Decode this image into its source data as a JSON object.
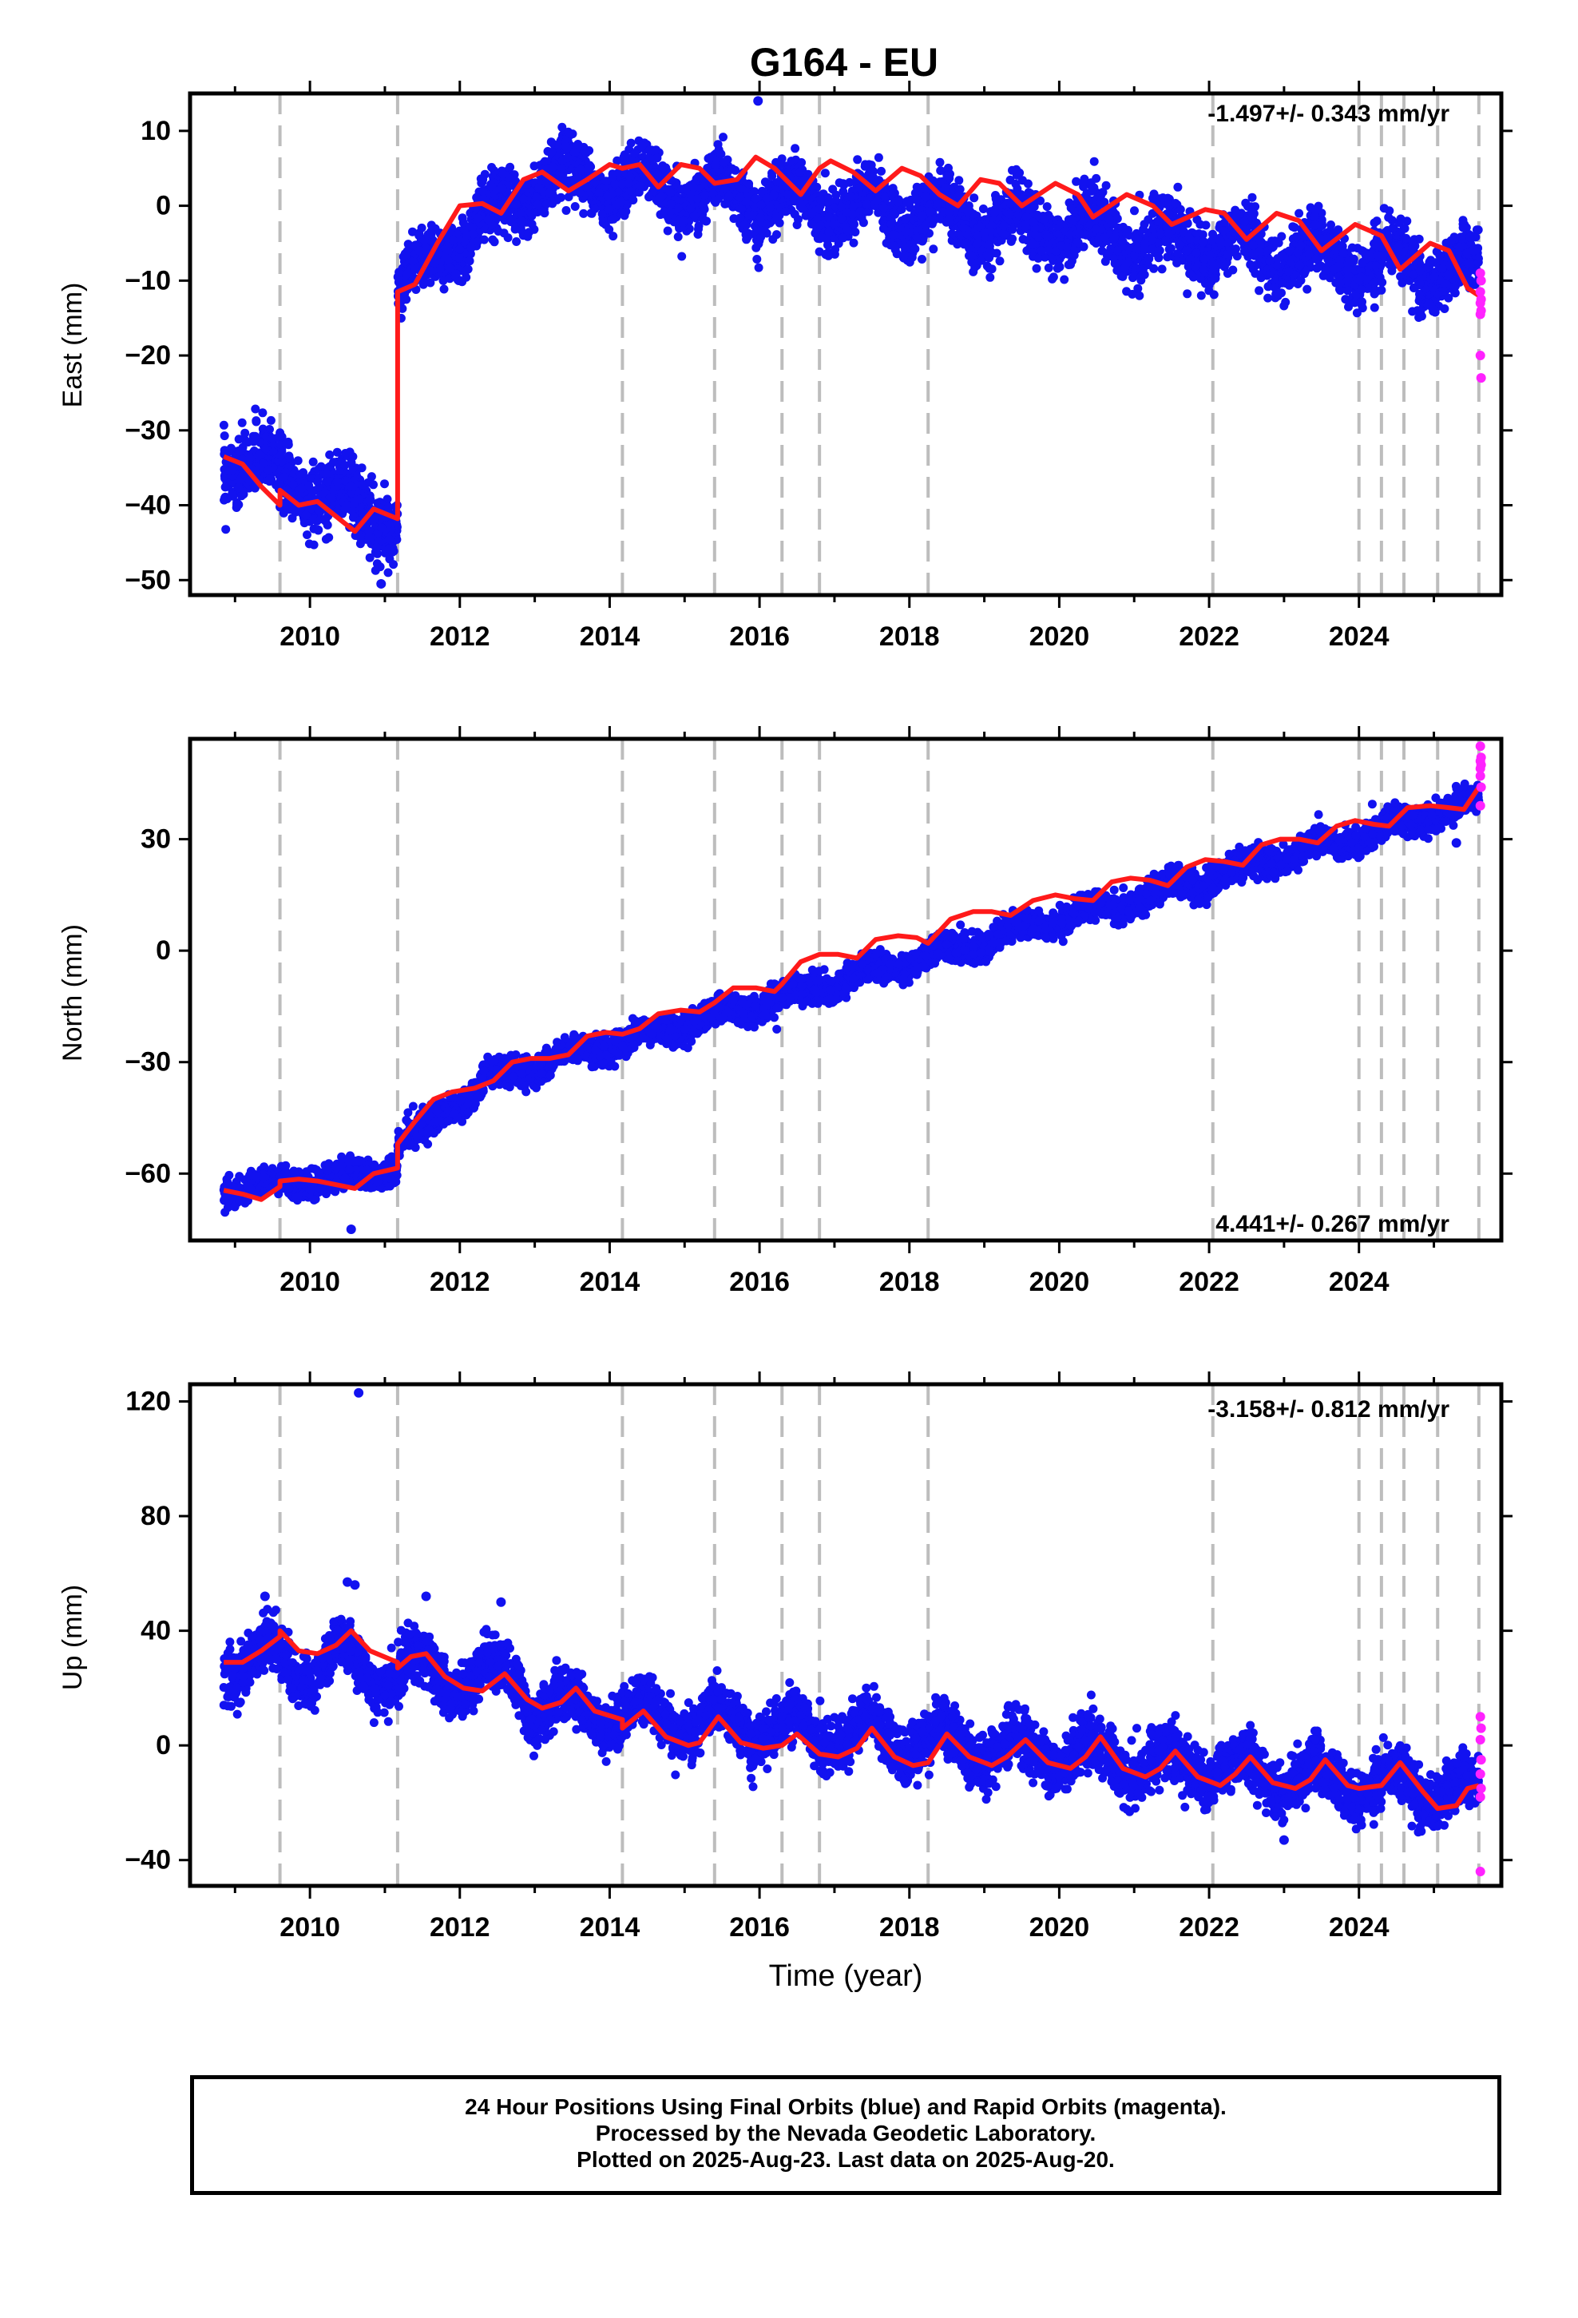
{
  "chart_data": {
    "type": "scatter",
    "title": "G164 - EU",
    "xlabel": "Time (year)",
    "xlim": [
      2008.4,
      2025.9
    ],
    "x_ticks": [
      2010,
      2012,
      2014,
      2016,
      2018,
      2020,
      2022,
      2024
    ],
    "x_tick_labels": [
      "2010",
      "2012",
      "2014",
      "2016",
      "2018",
      "2020",
      "2022",
      "2024"
    ],
    "steps": [
      2009.6,
      2011.17,
      2014.17,
      2015.4,
      2016.3,
      2016.8,
      2018.25,
      2022.05,
      2024.0,
      2024.3,
      2024.6,
      2025.05,
      2025.6
    ],
    "colors": {
      "final_orbits": "#1212f0",
      "rapid_orbits": "#ff22ff",
      "model_fit": "#ff1a1a",
      "step_lines": "#bdbdbd"
    },
    "legend": [
      {
        "name": "Final Orbits",
        "color": "blue"
      },
      {
        "name": "Rapid Orbits",
        "color": "magenta"
      }
    ],
    "panels": [
      {
        "id": "east",
        "ylabel": "East (mm)",
        "ylim": [
          -52,
          15
        ],
        "y_ticks": [
          -50,
          -40,
          -30,
          -20,
          -10,
          0,
          10
        ],
        "y_tick_labels": [
          "−50",
          "−40",
          "−30",
          "−20",
          "−10",
          "0",
          "10"
        ],
        "rate_text": "-1.497+/- 0.343 mm/yr",
        "rate_position": "top-right",
        "fit_points": [
          [
            2008.85,
            -33.5
          ],
          [
            2009.1,
            -34.5
          ],
          [
            2009.35,
            -37.5
          ],
          [
            2009.6,
            -40
          ],
          [
            2009.6,
            -38
          ],
          [
            2009.85,
            -40
          ],
          [
            2010.1,
            -39.5
          ],
          [
            2010.35,
            -41.5
          ],
          [
            2010.6,
            -43.5
          ],
          [
            2010.85,
            -40.5
          ],
          [
            2011.17,
            -41.8
          ],
          [
            2011.17,
            -11.5
          ],
          [
            2011.4,
            -10.5
          ],
          [
            2011.7,
            -5
          ],
          [
            2012.0,
            0
          ],
          [
            2012.3,
            0.3
          ],
          [
            2012.55,
            -1
          ],
          [
            2012.85,
            3.5
          ],
          [
            2013.1,
            4.5
          ],
          [
            2013.45,
            2
          ],
          [
            2013.7,
            3.5
          ],
          [
            2014.0,
            5.5
          ],
          [
            2014.17,
            5
          ],
          [
            2014.4,
            5.5
          ],
          [
            2014.65,
            2.5
          ],
          [
            2014.95,
            5.5
          ],
          [
            2015.2,
            5
          ],
          [
            2015.4,
            3
          ],
          [
            2015.7,
            3.5
          ],
          [
            2015.95,
            6.5
          ],
          [
            2016.2,
            5
          ],
          [
            2016.3,
            4
          ],
          [
            2016.55,
            1.5
          ],
          [
            2016.8,
            5
          ],
          [
            2016.95,
            6
          ],
          [
            2017.25,
            4.5
          ],
          [
            2017.55,
            2
          ],
          [
            2017.9,
            5
          ],
          [
            2018.15,
            4
          ],
          [
            2018.4,
            1.5
          ],
          [
            2018.65,
            0
          ],
          [
            2018.95,
            3.5
          ],
          [
            2019.2,
            3
          ],
          [
            2019.5,
            0
          ],
          [
            2019.95,
            3
          ],
          [
            2020.25,
            1.5
          ],
          [
            2020.45,
            -1.5
          ],
          [
            2020.9,
            1.5
          ],
          [
            2021.25,
            0
          ],
          [
            2021.5,
            -2.5
          ],
          [
            2021.95,
            -0.5
          ],
          [
            2022.2,
            -1
          ],
          [
            2022.5,
            -4.5
          ],
          [
            2022.9,
            -1
          ],
          [
            2023.2,
            -2
          ],
          [
            2023.5,
            -6
          ],
          [
            2023.95,
            -2.5
          ],
          [
            2024.3,
            -4
          ],
          [
            2024.55,
            -8.5
          ],
          [
            2024.95,
            -5
          ],
          [
            2025.2,
            -6
          ],
          [
            2025.45,
            -11
          ],
          [
            2025.6,
            -12
          ]
        ],
        "data_segments": [
          {
            "start": 2008.85,
            "end": 2011.17,
            "start_value": -33.5,
            "end_value": -42,
            "amplitude": 2.2,
            "noise": 2.2
          },
          {
            "start": 2011.17,
            "end": 2013.0,
            "start_value": -11,
            "end_value": 3,
            "amplitude": 2.0,
            "noise": 2.0
          },
          {
            "start": 2013.0,
            "end": 2025.6,
            "start_value": 4,
            "end_value": -9,
            "amplitude": 2.5,
            "noise": 2.0
          }
        ],
        "rapid_points": [
          [
            2025.62,
            -9
          ],
          [
            2025.63,
            -10
          ],
          [
            2025.62,
            -11.5
          ],
          [
            2025.63,
            -12.5
          ],
          [
            2025.62,
            -13
          ],
          [
            2025.63,
            -14
          ],
          [
            2025.62,
            -14.5
          ],
          [
            2025.62,
            -20
          ],
          [
            2025.63,
            -23
          ]
        ],
        "outliers": [
          [
            2015.98,
            14
          ],
          [
            2010.95,
            -50.5
          ]
        ]
      },
      {
        "id": "north",
        "ylabel": "North (mm)",
        "ylim": [
          -78,
          57
        ],
        "y_ticks": [
          -60,
          -30,
          0,
          30
        ],
        "y_tick_labels": [
          "−60",
          "−30",
          "0",
          "30"
        ],
        "rate_text": "4.441+/- 0.267 mm/yr",
        "rate_position": "bottom-right",
        "fit_points": [
          [
            2008.85,
            -64.5
          ],
          [
            2009.1,
            -65.5
          ],
          [
            2009.35,
            -67
          ],
          [
            2009.6,
            -63.5
          ],
          [
            2009.6,
            -62
          ],
          [
            2009.85,
            -61.5
          ],
          [
            2010.1,
            -62
          ],
          [
            2010.35,
            -63
          ],
          [
            2010.6,
            -64
          ],
          [
            2010.85,
            -60
          ],
          [
            2011.17,
            -58.5
          ],
          [
            2011.17,
            -52
          ],
          [
            2011.4,
            -46
          ],
          [
            2011.65,
            -40
          ],
          [
            2011.9,
            -38
          ],
          [
            2012.2,
            -37
          ],
          [
            2012.45,
            -35
          ],
          [
            2012.7,
            -30
          ],
          [
            2012.95,
            -29
          ],
          [
            2013.2,
            -29
          ],
          [
            2013.45,
            -28
          ],
          [
            2013.7,
            -23
          ],
          [
            2013.95,
            -22
          ],
          [
            2014.17,
            -22.5
          ],
          [
            2014.4,
            -21
          ],
          [
            2014.65,
            -17
          ],
          [
            2014.95,
            -16
          ],
          [
            2015.2,
            -16.5
          ],
          [
            2015.4,
            -14
          ],
          [
            2015.65,
            -10
          ],
          [
            2015.95,
            -10
          ],
          [
            2016.2,
            -11
          ],
          [
            2016.3,
            -9
          ],
          [
            2016.55,
            -3
          ],
          [
            2016.8,
            -1
          ],
          [
            2017.05,
            -1
          ],
          [
            2017.3,
            -2
          ],
          [
            2017.55,
            3
          ],
          [
            2017.85,
            4
          ],
          [
            2018.1,
            3.5
          ],
          [
            2018.25,
            2
          ],
          [
            2018.55,
            8.5
          ],
          [
            2018.85,
            10.5
          ],
          [
            2019.1,
            10.5
          ],
          [
            2019.35,
            9.5
          ],
          [
            2019.65,
            13.5
          ],
          [
            2019.95,
            15
          ],
          [
            2020.2,
            14
          ],
          [
            2020.45,
            13.5
          ],
          [
            2020.7,
            18.5
          ],
          [
            2020.95,
            19.5
          ],
          [
            2021.2,
            19
          ],
          [
            2021.45,
            17.5
          ],
          [
            2021.7,
            22.5
          ],
          [
            2021.95,
            24.5
          ],
          [
            2022.2,
            24
          ],
          [
            2022.45,
            23
          ],
          [
            2022.7,
            28.5
          ],
          [
            2022.95,
            30
          ],
          [
            2023.2,
            30
          ],
          [
            2023.45,
            29
          ],
          [
            2023.7,
            33.5
          ],
          [
            2023.95,
            35
          ],
          [
            2024.2,
            34
          ],
          [
            2024.4,
            33.5
          ],
          [
            2024.65,
            38.5
          ],
          [
            2024.95,
            39
          ],
          [
            2025.2,
            38.5
          ],
          [
            2025.4,
            38
          ],
          [
            2025.6,
            44
          ]
        ],
        "data_segments": [
          {
            "start": 2008.85,
            "end": 2011.17,
            "start_value": -64.5,
            "end_value": -59,
            "amplitude": 1.5,
            "noise": 1.8
          },
          {
            "start": 2011.17,
            "end": 2012.3,
            "start_value": -52,
            "end_value": -37,
            "amplitude": 1.0,
            "noise": 1.8
          },
          {
            "start": 2012.3,
            "end": 2025.6,
            "start_value": -35,
            "end_value": 40,
            "amplitude": 1.8,
            "noise": 1.8
          }
        ],
        "rapid_points": [
          [
            2025.62,
            55
          ],
          [
            2025.63,
            52
          ],
          [
            2025.62,
            51
          ],
          [
            2025.63,
            50
          ],
          [
            2025.62,
            49
          ],
          [
            2025.62,
            47
          ],
          [
            2025.63,
            44
          ],
          [
            2025.62,
            39
          ]
        ],
        "outliers": [
          [
            2010.55,
            -75
          ],
          [
            2025.3,
            29
          ]
        ]
      },
      {
        "id": "up",
        "ylabel": "Up (mm)",
        "ylim": [
          -49,
          126
        ],
        "y_ticks": [
          -40,
          0,
          40,
          80,
          120
        ],
        "y_tick_labels": [
          "−40",
          "0",
          "40",
          "80",
          "120"
        ],
        "rate_text": "-3.158+/- 0.812 mm/yr",
        "rate_position": "top-right",
        "fit_points": [
          [
            2008.85,
            29
          ],
          [
            2009.1,
            29
          ],
          [
            2009.35,
            33
          ],
          [
            2009.6,
            38
          ],
          [
            2009.6,
            40
          ],
          [
            2009.85,
            33
          ],
          [
            2010.1,
            32
          ],
          [
            2010.35,
            35
          ],
          [
            2010.55,
            40
          ],
          [
            2010.8,
            33
          ],
          [
            2011.17,
            29
          ],
          [
            2011.17,
            27
          ],
          [
            2011.35,
            31
          ],
          [
            2011.55,
            32
          ],
          [
            2011.8,
            24
          ],
          [
            2012.05,
            20
          ],
          [
            2012.3,
            19
          ],
          [
            2012.6,
            25
          ],
          [
            2012.9,
            16
          ],
          [
            2013.1,
            13
          ],
          [
            2013.35,
            15
          ],
          [
            2013.55,
            20
          ],
          [
            2013.8,
            12
          ],
          [
            2014.17,
            9
          ],
          [
            2014.17,
            6
          ],
          [
            2014.45,
            12
          ],
          [
            2014.75,
            3
          ],
          [
            2015.05,
            0
          ],
          [
            2015.2,
            1
          ],
          [
            2015.45,
            10
          ],
          [
            2015.75,
            1
          ],
          [
            2016.05,
            -1
          ],
          [
            2016.3,
            0
          ],
          [
            2016.5,
            4
          ],
          [
            2016.8,
            -3
          ],
          [
            2017.05,
            -4
          ],
          [
            2017.3,
            -1
          ],
          [
            2017.5,
            6
          ],
          [
            2017.8,
            -4
          ],
          [
            2018.05,
            -7
          ],
          [
            2018.25,
            -6
          ],
          [
            2018.5,
            4
          ],
          [
            2018.8,
            -4
          ],
          [
            2019.1,
            -7
          ],
          [
            2019.3,
            -4
          ],
          [
            2019.55,
            2
          ],
          [
            2019.85,
            -6
          ],
          [
            2020.15,
            -8
          ],
          [
            2020.35,
            -4
          ],
          [
            2020.55,
            3
          ],
          [
            2020.85,
            -8
          ],
          [
            2021.15,
            -11
          ],
          [
            2021.35,
            -8
          ],
          [
            2021.55,
            -2
          ],
          [
            2021.85,
            -11
          ],
          [
            2022.15,
            -14
          ],
          [
            2022.35,
            -10
          ],
          [
            2022.55,
            -4
          ],
          [
            2022.85,
            -13
          ],
          [
            2023.15,
            -15
          ],
          [
            2023.35,
            -12
          ],
          [
            2023.55,
            -5
          ],
          [
            2023.85,
            -14
          ],
          [
            2024.0,
            -15
          ],
          [
            2024.3,
            -14
          ],
          [
            2024.55,
            -6
          ],
          [
            2024.85,
            -16
          ],
          [
            2025.05,
            -22
          ],
          [
            2025.3,
            -21
          ],
          [
            2025.45,
            -15
          ],
          [
            2025.6,
            -14
          ]
        ],
        "data_segments": [
          {
            "start": 2008.85,
            "end": 2012.9,
            "start_value": 31,
            "end_value": 22,
            "amplitude": 7,
            "noise": 4.5
          },
          {
            "start": 2012.9,
            "end": 2025.6,
            "start_value": 14,
            "end_value": -17,
            "amplitude": 6,
            "noise": 4.5
          }
        ],
        "rapid_points": [
          [
            2025.62,
            10
          ],
          [
            2025.63,
            6
          ],
          [
            2025.62,
            2
          ],
          [
            2025.63,
            -5
          ],
          [
            2025.62,
            -10
          ],
          [
            2025.63,
            -15
          ],
          [
            2025.62,
            -18
          ],
          [
            2025.62,
            -44
          ]
        ],
        "outliers": [
          [
            2010.65,
            123
          ],
          [
            2010.5,
            57
          ],
          [
            2010.6,
            56
          ],
          [
            2009.4,
            52
          ],
          [
            2011.55,
            52
          ],
          [
            2012.55,
            50
          ],
          [
            2023.0,
            -33
          ]
        ]
      }
    ]
  },
  "footer": {
    "line1": "24 Hour Positions Using Final Orbits (blue) and Rapid Orbits (magenta).",
    "line2": "Processed by the Nevada Geodetic Laboratory.",
    "line3": "Plotted on 2025-Aug-23. Last data on 2025-Aug-20."
  }
}
